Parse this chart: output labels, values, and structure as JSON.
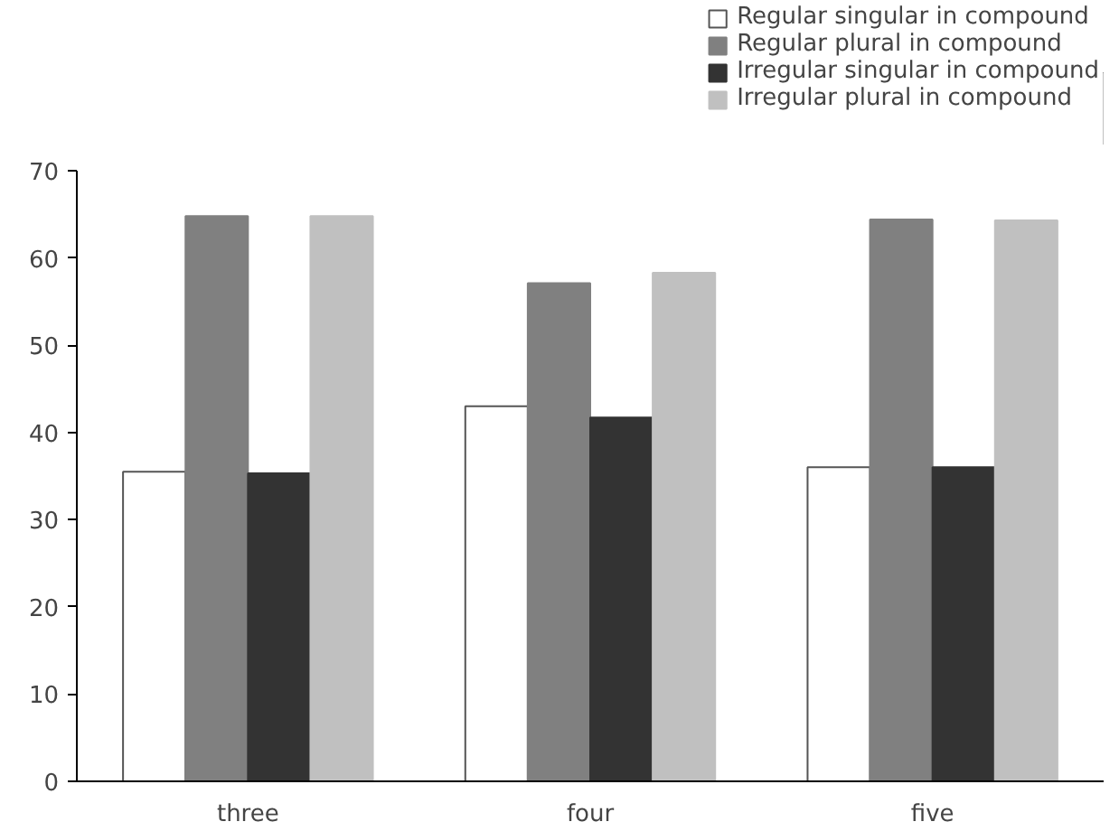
{
  "chart_data": {
    "type": "bar",
    "categories": [
      "three",
      "four",
      "five"
    ],
    "series": [
      {
        "name": "Regular singular in compound",
        "color": "#ffffff",
        "values": [
          35.5,
          43.0,
          36.0
        ]
      },
      {
        "name": "Regular plural in compound",
        "color": "#808080",
        "values": [
          64.8,
          57.1,
          64.4
        ]
      },
      {
        "name": "Irregular singular in compound",
        "color": "#333333",
        "values": [
          35.3,
          41.7,
          36.0
        ]
      },
      {
        "name": "Irregular plural in compound",
        "color": "#c0c0c0",
        "values": [
          64.8,
          58.3,
          64.3
        ]
      }
    ],
    "ylim": [
      0,
      70
    ],
    "yticks": [
      0,
      10,
      20,
      30,
      40,
      50,
      60,
      70
    ],
    "grid": false,
    "legend": "top right"
  }
}
